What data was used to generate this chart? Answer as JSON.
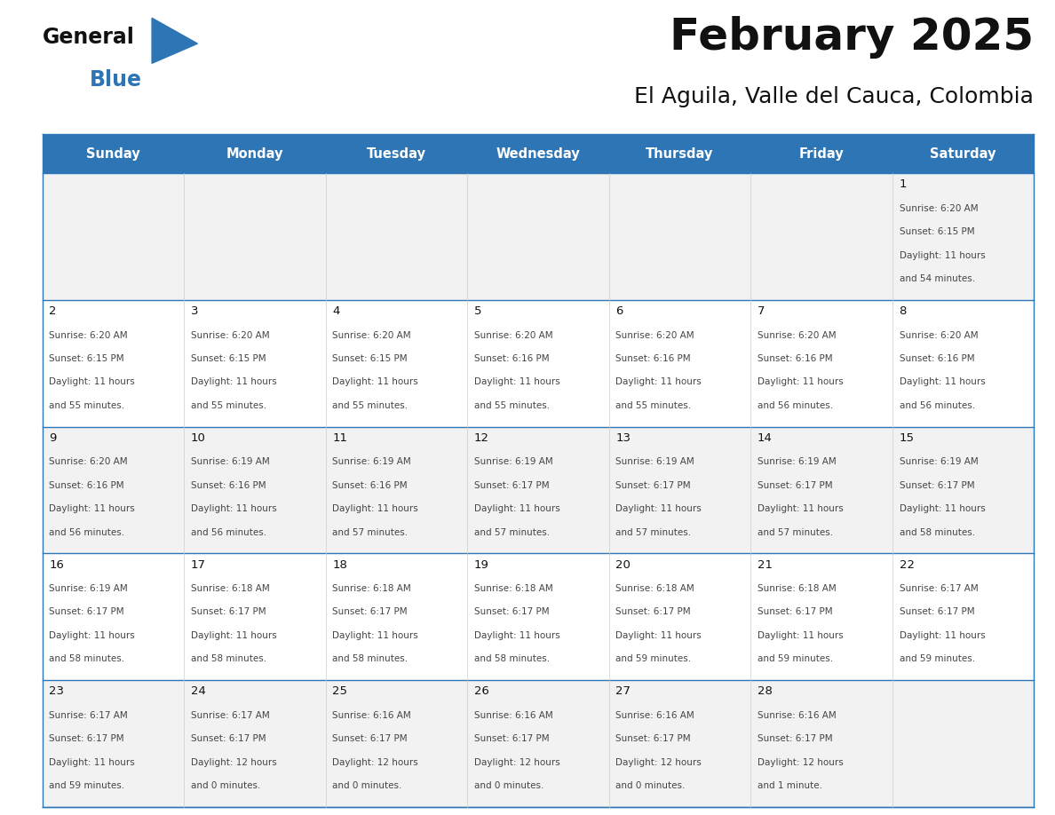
{
  "title": "February 2025",
  "subtitle": "El Aguila, Valle del Cauca, Colombia",
  "header_bg": "#2E75B6",
  "header_text_color": "#FFFFFF",
  "cell_bg_odd": "#F2F2F2",
  "cell_bg_even": "#FFFFFF",
  "day_names": [
    "Sunday",
    "Monday",
    "Tuesday",
    "Wednesday",
    "Thursday",
    "Friday",
    "Saturday"
  ],
  "days": [
    {
      "day": 1,
      "col": 6,
      "row": 0,
      "sunrise": "6:20 AM",
      "sunset": "6:15 PM",
      "daylight_h": "11 hours",
      "daylight_m": "and 54 minutes."
    },
    {
      "day": 2,
      "col": 0,
      "row": 1,
      "sunrise": "6:20 AM",
      "sunset": "6:15 PM",
      "daylight_h": "11 hours",
      "daylight_m": "and 55 minutes."
    },
    {
      "day": 3,
      "col": 1,
      "row": 1,
      "sunrise": "6:20 AM",
      "sunset": "6:15 PM",
      "daylight_h": "11 hours",
      "daylight_m": "and 55 minutes."
    },
    {
      "day": 4,
      "col": 2,
      "row": 1,
      "sunrise": "6:20 AM",
      "sunset": "6:15 PM",
      "daylight_h": "11 hours",
      "daylight_m": "and 55 minutes."
    },
    {
      "day": 5,
      "col": 3,
      "row": 1,
      "sunrise": "6:20 AM",
      "sunset": "6:16 PM",
      "daylight_h": "11 hours",
      "daylight_m": "and 55 minutes."
    },
    {
      "day": 6,
      "col": 4,
      "row": 1,
      "sunrise": "6:20 AM",
      "sunset": "6:16 PM",
      "daylight_h": "11 hours",
      "daylight_m": "and 55 minutes."
    },
    {
      "day": 7,
      "col": 5,
      "row": 1,
      "sunrise": "6:20 AM",
      "sunset": "6:16 PM",
      "daylight_h": "11 hours",
      "daylight_m": "and 56 minutes."
    },
    {
      "day": 8,
      "col": 6,
      "row": 1,
      "sunrise": "6:20 AM",
      "sunset": "6:16 PM",
      "daylight_h": "11 hours",
      "daylight_m": "and 56 minutes."
    },
    {
      "day": 9,
      "col": 0,
      "row": 2,
      "sunrise": "6:20 AM",
      "sunset": "6:16 PM",
      "daylight_h": "11 hours",
      "daylight_m": "and 56 minutes."
    },
    {
      "day": 10,
      "col": 1,
      "row": 2,
      "sunrise": "6:19 AM",
      "sunset": "6:16 PM",
      "daylight_h": "11 hours",
      "daylight_m": "and 56 minutes."
    },
    {
      "day": 11,
      "col": 2,
      "row": 2,
      "sunrise": "6:19 AM",
      "sunset": "6:16 PM",
      "daylight_h": "11 hours",
      "daylight_m": "and 57 minutes."
    },
    {
      "day": 12,
      "col": 3,
      "row": 2,
      "sunrise": "6:19 AM",
      "sunset": "6:17 PM",
      "daylight_h": "11 hours",
      "daylight_m": "and 57 minutes."
    },
    {
      "day": 13,
      "col": 4,
      "row": 2,
      "sunrise": "6:19 AM",
      "sunset": "6:17 PM",
      "daylight_h": "11 hours",
      "daylight_m": "and 57 minutes."
    },
    {
      "day": 14,
      "col": 5,
      "row": 2,
      "sunrise": "6:19 AM",
      "sunset": "6:17 PM",
      "daylight_h": "11 hours",
      "daylight_m": "and 57 minutes."
    },
    {
      "day": 15,
      "col": 6,
      "row": 2,
      "sunrise": "6:19 AM",
      "sunset": "6:17 PM",
      "daylight_h": "11 hours",
      "daylight_m": "and 58 minutes."
    },
    {
      "day": 16,
      "col": 0,
      "row": 3,
      "sunrise": "6:19 AM",
      "sunset": "6:17 PM",
      "daylight_h": "11 hours",
      "daylight_m": "and 58 minutes."
    },
    {
      "day": 17,
      "col": 1,
      "row": 3,
      "sunrise": "6:18 AM",
      "sunset": "6:17 PM",
      "daylight_h": "11 hours",
      "daylight_m": "and 58 minutes."
    },
    {
      "day": 18,
      "col": 2,
      "row": 3,
      "sunrise": "6:18 AM",
      "sunset": "6:17 PM",
      "daylight_h": "11 hours",
      "daylight_m": "and 58 minutes."
    },
    {
      "day": 19,
      "col": 3,
      "row": 3,
      "sunrise": "6:18 AM",
      "sunset": "6:17 PM",
      "daylight_h": "11 hours",
      "daylight_m": "and 58 minutes."
    },
    {
      "day": 20,
      "col": 4,
      "row": 3,
      "sunrise": "6:18 AM",
      "sunset": "6:17 PM",
      "daylight_h": "11 hours",
      "daylight_m": "and 59 minutes."
    },
    {
      "day": 21,
      "col": 5,
      "row": 3,
      "sunrise": "6:18 AM",
      "sunset": "6:17 PM",
      "daylight_h": "11 hours",
      "daylight_m": "and 59 minutes."
    },
    {
      "day": 22,
      "col": 6,
      "row": 3,
      "sunrise": "6:17 AM",
      "sunset": "6:17 PM",
      "daylight_h": "11 hours",
      "daylight_m": "and 59 minutes."
    },
    {
      "day": 23,
      "col": 0,
      "row": 4,
      "sunrise": "6:17 AM",
      "sunset": "6:17 PM",
      "daylight_h": "11 hours",
      "daylight_m": "and 59 minutes."
    },
    {
      "day": 24,
      "col": 1,
      "row": 4,
      "sunrise": "6:17 AM",
      "sunset": "6:17 PM",
      "daylight_h": "12 hours",
      "daylight_m": "and 0 minutes."
    },
    {
      "day": 25,
      "col": 2,
      "row": 4,
      "sunrise": "6:16 AM",
      "sunset": "6:17 PM",
      "daylight_h": "12 hours",
      "daylight_m": "and 0 minutes."
    },
    {
      "day": 26,
      "col": 3,
      "row": 4,
      "sunrise": "6:16 AM",
      "sunset": "6:17 PM",
      "daylight_h": "12 hours",
      "daylight_m": "and 0 minutes."
    },
    {
      "day": 27,
      "col": 4,
      "row": 4,
      "sunrise": "6:16 AM",
      "sunset": "6:17 PM",
      "daylight_h": "12 hours",
      "daylight_m": "and 0 minutes."
    },
    {
      "day": 28,
      "col": 5,
      "row": 4,
      "sunrise": "6:16 AM",
      "sunset": "6:17 PM",
      "daylight_h": "12 hours",
      "daylight_m": "and 1 minute."
    }
  ],
  "num_rows": 5,
  "num_cols": 7,
  "fig_width": 11.88,
  "fig_height": 9.18,
  "logo_text1": "General",
  "logo_text2": "Blue",
  "title_fontsize": 36,
  "subtitle_fontsize": 18,
  "header_fontsize": 10.5,
  "daynum_fontsize": 9.5,
  "info_fontsize": 7.5
}
